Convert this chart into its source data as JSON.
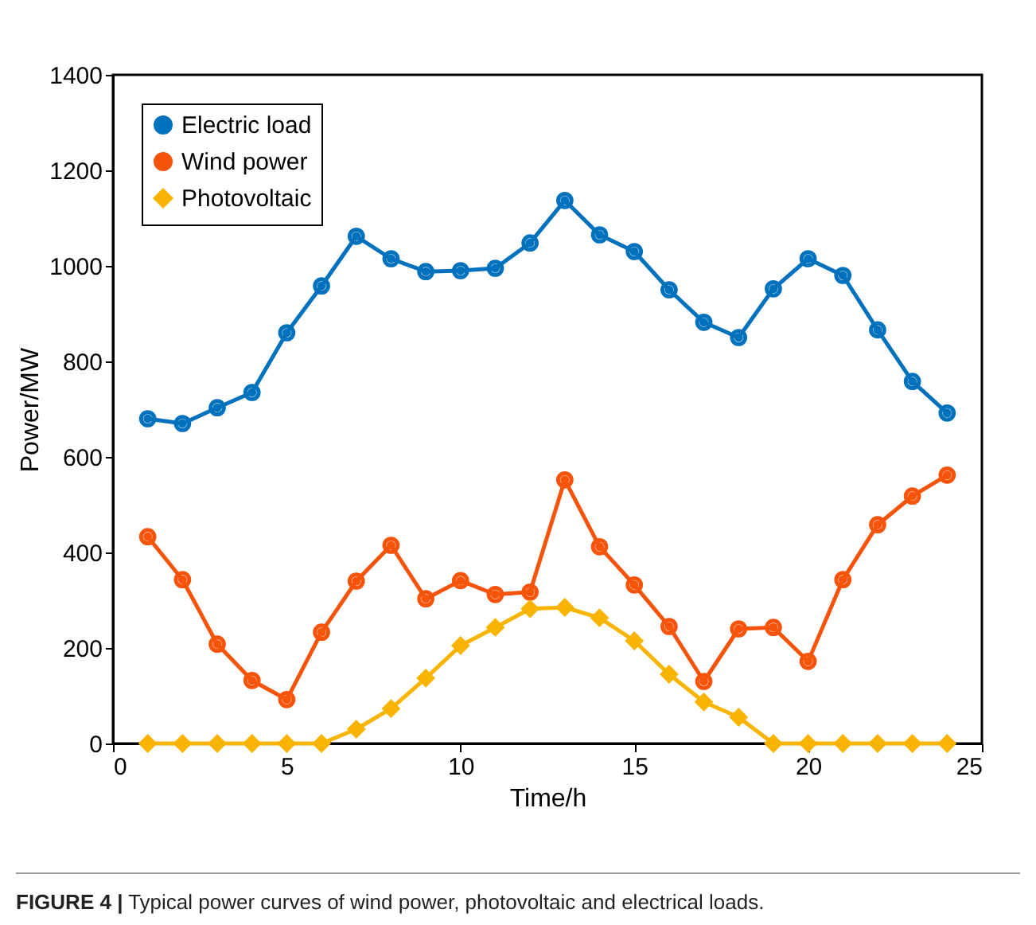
{
  "chart_data": {
    "type": "line",
    "xlabel": "Time/h",
    "ylabel": "Power/MW",
    "x": [
      1,
      2,
      3,
      4,
      5,
      6,
      7,
      8,
      9,
      10,
      11,
      12,
      13,
      14,
      15,
      16,
      17,
      18,
      19,
      20,
      21,
      22,
      23,
      24
    ],
    "series": [
      {
        "name": "Electric load",
        "color": "#0072bd",
        "marker": "circle",
        "values": [
          680,
          670,
          703,
          735,
          860,
          958,
          1062,
          1015,
          988,
          990,
          995,
          1048,
          1137,
          1065,
          1030,
          950,
          882,
          850,
          952,
          1015,
          980,
          866,
          758,
          692
        ]
      },
      {
        "name": "Wind power",
        "color": "#f5540a",
        "marker": "circle",
        "values": [
          433,
          343,
          208,
          132,
          92,
          233,
          340,
          415,
          303,
          341,
          312,
          317,
          552,
          412,
          332,
          245,
          130,
          240,
          243,
          172,
          343,
          458,
          518,
          562
        ]
      },
      {
        "name": "Photovoltaic",
        "color": "#f8b400",
        "marker": "diamond",
        "values": [
          0,
          0,
          0,
          0,
          0,
          0,
          30,
          73,
          137,
          205,
          243,
          282,
          285,
          263,
          215,
          145,
          87,
          55,
          0,
          0,
          0,
          0,
          0,
          0
        ]
      }
    ],
    "xlim": [
      0,
      25
    ],
    "xticks": [
      0,
      5,
      10,
      15,
      20,
      25
    ],
    "ylim": [
      0,
      1400
    ],
    "yticks": [
      0,
      200,
      400,
      600,
      800,
      1000,
      1200,
      1400
    ],
    "grid": false,
    "legend": "top left",
    "annotations": [
      "FIGURE 4 | Typical power curves of wind power, photovoltaic and electrical loads."
    ]
  }
}
